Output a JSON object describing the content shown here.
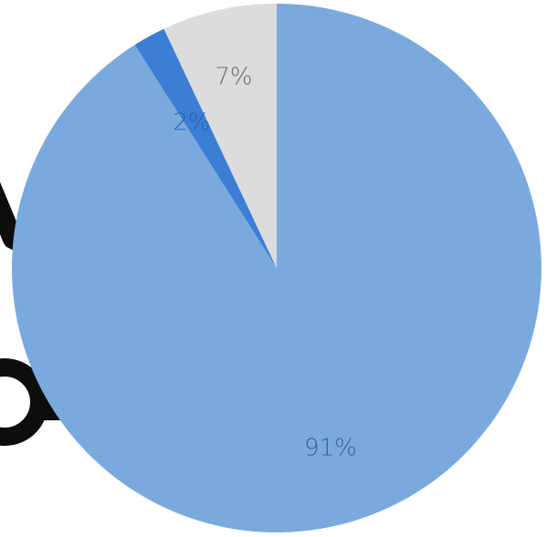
{
  "chart_data": {
    "type": "pie",
    "categories": [
      "",
      "",
      ""
    ],
    "values": [
      91,
      2,
      7
    ],
    "labels": [
      "91%",
      "2%",
      "7%"
    ],
    "colors": [
      "#7aaadd",
      "#3a7fd5",
      "#dcdcdc"
    ],
    "label_colors": [
      "#3a5f98",
      "#2d62b0",
      "#6b6b6b"
    ],
    "start_angle_deg": 0,
    "direction": "clockwise",
    "legend": "none",
    "title": ""
  }
}
